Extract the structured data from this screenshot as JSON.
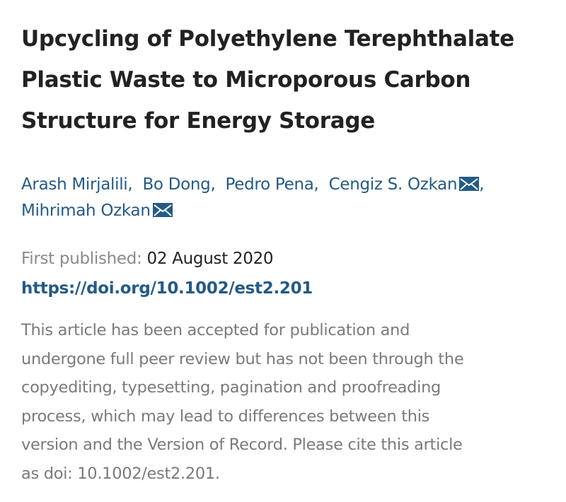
{
  "article": {
    "title_lines": [
      "Upcycling of Polyethylene Terephthalate",
      "Plastic Waste to Microporous Carbon",
      "Structure for Energy Storage"
    ],
    "authors": [
      {
        "name": "Arash Mirjalili",
        "sep": ","
      },
      {
        "name": "Bo Dong",
        "sep": ","
      },
      {
        "name": "Pedro Pena",
        "sep": ","
      },
      {
        "name": "Cengiz S. Ozkan",
        "sep": ",",
        "icon": "envelope-icon"
      },
      {
        "name": "Mihrimah Ozkan",
        "sep": "",
        "icon": "envelope-icon"
      }
    ],
    "first_published_label": "First published:",
    "first_published_date": "02 August 2020",
    "doi_link": "https://doi.org/10.1002/est2.201",
    "notice_lines": [
      "This article has been accepted for publication and",
      "undergone full peer review but has not been through the",
      "copyediting, typesetting, pagination and proofreading",
      "process, which may lead to differences between this",
      "version and the Version of Record. Please cite this article",
      "as doi: 10.1002/est2.201."
    ]
  },
  "colors": {
    "link": "#245a86",
    "title": "#222222",
    "muted": "#7a7a7a"
  }
}
